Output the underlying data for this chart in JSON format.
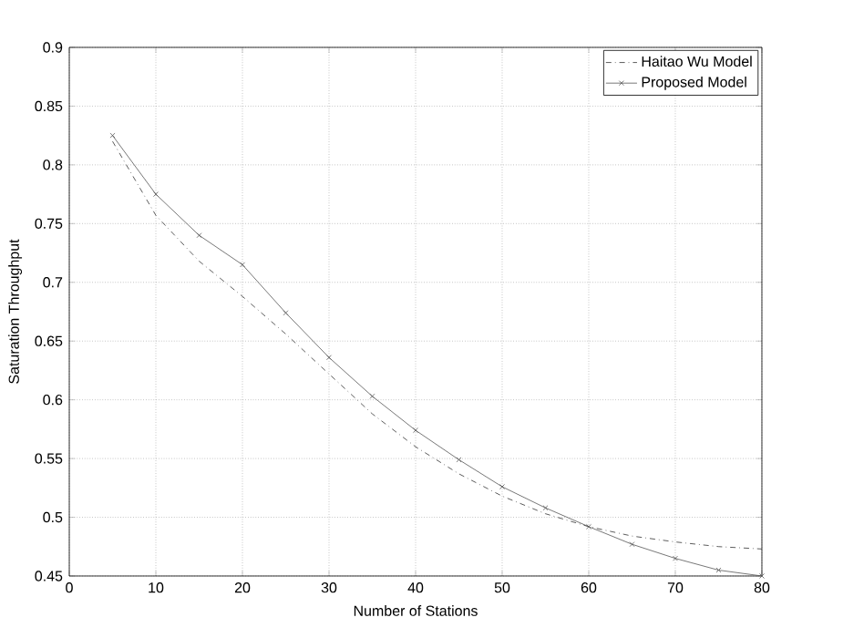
{
  "chart_data": {
    "type": "line",
    "xlabel": "Number of Stations",
    "ylabel": "Saturation Throughput",
    "x": [
      5,
      10,
      15,
      20,
      25,
      30,
      35,
      40,
      45,
      50,
      55,
      60,
      65,
      70,
      75,
      80
    ],
    "series": [
      {
        "name": "Haitao Wu Model",
        "color": "#333333",
        "line_style": "dashdot",
        "marker": "none",
        "values": [
          0.82,
          0.757,
          0.718,
          0.688,
          0.656,
          0.622,
          0.588,
          0.56,
          0.537,
          0.518,
          0.503,
          0.492,
          0.484,
          0.479,
          0.475,
          0.473
        ]
      },
      {
        "name": "Proposed Model",
        "color": "#555555",
        "line_style": "solid",
        "marker": "cross",
        "values": [
          0.825,
          0.775,
          0.74,
          0.715,
          0.674,
          0.636,
          0.603,
          0.574,
          0.549,
          0.526,
          0.508,
          0.492,
          0.477,
          0.465,
          0.455,
          0.45
        ]
      }
    ],
    "xlim": [
      0,
      80
    ],
    "ylim": [
      0.45,
      0.9
    ],
    "xticks": [
      0,
      10,
      20,
      30,
      40,
      50,
      60,
      70,
      80
    ],
    "yticks": [
      0.45,
      0.5,
      0.55,
      0.6,
      0.65,
      0.7,
      0.75,
      0.8,
      0.85,
      0.9
    ],
    "grid": true,
    "legend": "top right"
  }
}
